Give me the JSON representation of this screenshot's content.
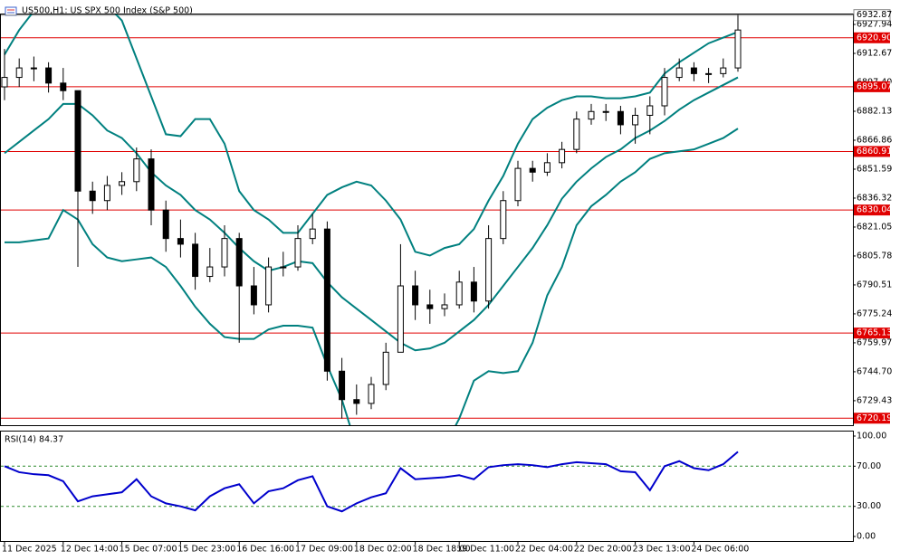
{
  "chart_data": {
    "type": "candlestick",
    "title": "US500,H1: US SPX 500 Index (S&P 500)",
    "categories": [
      "11 Dec 2025",
      null,
      null,
      null,
      "12 Dec 14:00",
      null,
      null,
      null,
      "15 Dec 07:00",
      null,
      null,
      null,
      "15 Dec 23:00",
      null,
      null,
      null,
      "16 Dec 16:00",
      null,
      null,
      null,
      "17 Dec 09:00",
      null,
      null,
      null,
      "18 Dec 02:00",
      null,
      null,
      null,
      "18 Dec 18:00",
      null,
      null,
      "19 Dec 11:00",
      null,
      null,
      null,
      "22 Dec 04:00",
      null,
      null,
      null,
      "22 Dec 20:00",
      null,
      null,
      null,
      "23 Dec 13:00",
      null,
      null,
      null,
      "24 Dec 06:00",
      null,
      null,
      null
    ],
    "open": [
      6895,
      6900,
      6905,
      6905,
      6897,
      6893,
      6840,
      6835,
      6843,
      6845,
      6857,
      6830,
      6815,
      6812,
      6795,
      6800,
      6815,
      6790,
      6780,
      6800,
      6800,
      6815,
      6820,
      6745,
      6730,
      6728,
      6738,
      6755,
      6790,
      6780,
      6778,
      6780,
      6792,
      6782,
      6815,
      6835,
      6852,
      6850,
      6855,
      6862,
      6878,
      6882,
      6882,
      6875,
      6880,
      6885,
      6900,
      6905,
      6902,
      6902,
      6905
    ],
    "high": [
      6915,
      6910,
      6911,
      6908,
      6905,
      6893,
      6845,
      6848,
      6850,
      6863,
      6862,
      6835,
      6825,
      6818,
      6810,
      6822,
      6818,
      6800,
      6805,
      6808,
      6822,
      6828,
      6824,
      6752,
      6738,
      6742,
      6760,
      6812,
      6798,
      6788,
      6786,
      6798,
      6800,
      6822,
      6840,
      6856,
      6856,
      6860,
      6866,
      6882,
      6886,
      6886,
      6885,
      6884,
      6890,
      6905,
      6910,
      6908,
      6905,
      6910,
      6933
    ],
    "low": [
      6888,
      6895,
      6898,
      6892,
      6888,
      6800,
      6828,
      6830,
      6838,
      6840,
      6822,
      6808,
      6805,
      6788,
      6792,
      6795,
      6760,
      6775,
      6776,
      6795,
      6798,
      6812,
      6740,
      6720,
      6722,
      6725,
      6735,
      6755,
      6772,
      6770,
      6774,
      6778,
      6776,
      6778,
      6812,
      6832,
      6845,
      6848,
      6852,
      6860,
      6875,
      6877,
      6870,
      6865,
      6870,
      6880,
      6898,
      6898,
      6897,
      6900,
      6903
    ],
    "close": [
      6900,
      6905,
      6905,
      6897,
      6893,
      6840,
      6835,
      6843,
      6845,
      6857,
      6830,
      6815,
      6812,
      6795,
      6800,
      6815,
      6790,
      6780,
      6800,
      6800,
      6815,
      6820,
      6745,
      6730,
      6728,
      6738,
      6755,
      6790,
      6780,
      6778,
      6780,
      6792,
      6782,
      6815,
      6835,
      6852,
      6850,
      6855,
      6862,
      6878,
      6882,
      6882,
      6875,
      6880,
      6885,
      6900,
      6905,
      6902,
      6902,
      6905,
      6925
    ],
    "bands": {
      "color": "#00807f",
      "upper": [
        6912,
        6925,
        6935,
        6940,
        6942,
        6942,
        6940,
        6938,
        6930,
        6910,
        6890,
        6870,
        6869,
        6878,
        6878,
        6865,
        6840,
        6830,
        6825,
        6818,
        6818,
        6828,
        6838,
        6842,
        6845,
        6843,
        6835,
        6825,
        6808,
        6806,
        6810,
        6812,
        6820,
        6835,
        6848,
        6865,
        6878,
        6884,
        6888,
        6890,
        6890,
        6889,
        6889,
        6890,
        6892,
        6902,
        6908,
        6913,
        6918,
        6921,
        6924
      ],
      "middle": [
        6860,
        6866,
        6872,
        6878,
        6886,
        6886,
        6880,
        6872,
        6868,
        6860,
        6850,
        6843,
        6838,
        6830,
        6825,
        6818,
        6810,
        6803,
        6798,
        6800,
        6803,
        6802,
        6792,
        6784,
        6778,
        6772,
        6766,
        6760,
        6756,
        6757,
        6760,
        6766,
        6772,
        6780,
        6790,
        6800,
        6810,
        6822,
        6836,
        6845,
        6852,
        6858,
        6862,
        6868,
        6872,
        6877,
        6883,
        6888,
        6892,
        6896,
        6900
      ],
      "lower": [
        6813,
        6813,
        6814,
        6815,
        6830,
        6825,
        6812,
        6805,
        6803,
        6804,
        6805,
        6800,
        6790,
        6779,
        6770,
        6763,
        6762,
        6762,
        6767,
        6769,
        6769,
        6768,
        6748,
        6730,
        6705,
        6690,
        6685,
        6690,
        6695,
        6700,
        6705,
        6720,
        6740,
        6745,
        6744,
        6745,
        6760,
        6785,
        6800,
        6822,
        6832,
        6838,
        6845,
        6850,
        6857,
        6860,
        6861,
        6862,
        6865,
        6868,
        6873
      ]
    },
    "levels": {
      "color": "#e00000",
      "values": [
        {
          "value": 6920.9,
          "label": "6920.90"
        },
        6895.07,
        6860.91,
        6830.04,
        6765.13,
        6720.19
      ]
    },
    "current_price": 6932.87,
    "ylim": [
      6716.5,
      6933.2
    ],
    "yticks": [
      6927.94,
      6912.67,
      {
        "value": 6897.4,
        "label": "6897.40"
      },
      6882.13,
      6866.86,
      6851.59,
      6836.32,
      6821.05,
      6805.78,
      6790.51,
      6775.24,
      6759.97,
      {
        "value": 6744.7,
        "label": "6744.70"
      },
      6729.43
    ],
    "rsi": {
      "title": "RSI(14) 84.37",
      "color": "#0000cc",
      "values": [
        70,
        64,
        62,
        61,
        55,
        35,
        40,
        42,
        44,
        57,
        40,
        33,
        30,
        26,
        40,
        48,
        52,
        33,
        45,
        48,
        56,
        60,
        30,
        25,
        33,
        39,
        43,
        68,
        57,
        58,
        59,
        61,
        57,
        69,
        71,
        72,
        71,
        69,
        72,
        74,
        73,
        72,
        65,
        64,
        46,
        70,
        75,
        68,
        66,
        72,
        84.37
      ],
      "ylim": [
        -4.5,
        104.5
      ],
      "yticks": [
        {
          "value": 100,
          "label": "100.00"
        },
        {
          "value": 70,
          "label": "70.00"
        },
        {
          "value": 30,
          "label": "30.00"
        },
        {
          "value": 0,
          "label": "0.00"
        }
      ],
      "levels": [
        70,
        30
      ]
    }
  }
}
